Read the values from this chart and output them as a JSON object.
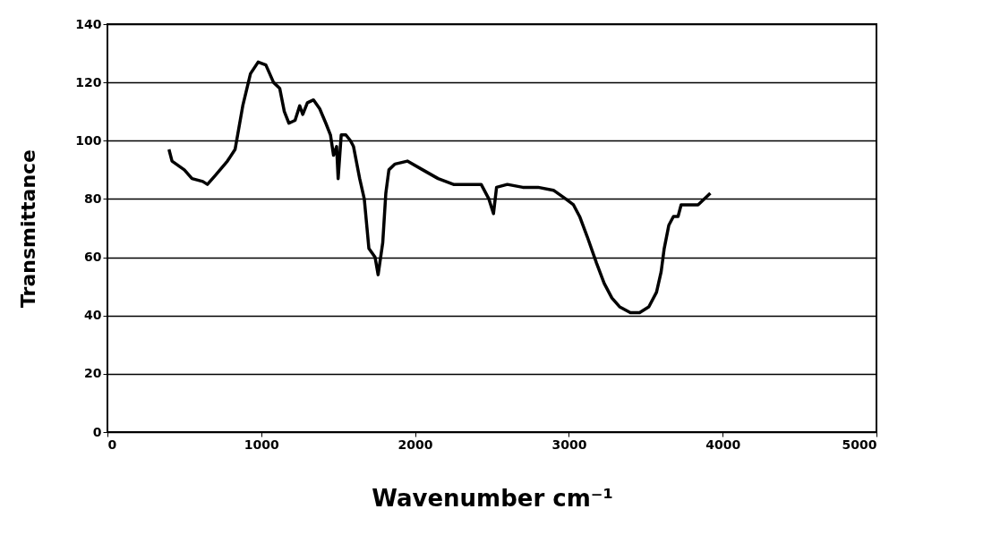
{
  "chart_data": {
    "type": "line",
    "xlabel": "Wavenumber cm⁻¹",
    "ylabel": "Transmittance",
    "x": [
      400,
      420,
      500,
      550,
      620,
      650,
      700,
      780,
      830,
      880,
      930,
      980,
      1030,
      1080,
      1120,
      1150,
      1180,
      1220,
      1250,
      1270,
      1300,
      1340,
      1380,
      1420,
      1450,
      1470,
      1490,
      1500,
      1520,
      1550,
      1580,
      1600,
      1640,
      1670,
      1700,
      1740,
      1760,
      1790,
      1810,
      1830,
      1870,
      1950,
      2050,
      2150,
      2250,
      2350,
      2430,
      2480,
      2510,
      2530,
      2600,
      2700,
      2800,
      2900,
      2980,
      3030,
      3070,
      3120,
      3180,
      3230,
      3280,
      3330,
      3400,
      3460,
      3520,
      3570,
      3600,
      3620,
      3650,
      3680,
      3710,
      3730,
      3790,
      3840,
      3880,
      3920
    ],
    "series": [
      {
        "color": "#000000",
        "values": [
          97,
          93,
          90,
          87,
          86,
          85,
          88,
          93,
          97,
          112,
          123,
          127,
          126,
          120,
          118,
          110,
          106,
          107,
          112,
          109,
          113,
          114,
          111,
          106,
          102,
          95,
          98,
          87,
          102,
          102,
          100,
          98,
          87,
          80,
          63,
          60,
          54,
          65,
          82,
          90,
          92,
          93,
          90,
          87,
          85,
          85,
          85,
          80,
          75,
          84,
          85,
          84,
          84,
          83,
          80,
          78,
          74,
          67,
          58,
          51,
          46,
          43,
          41,
          41,
          43,
          48,
          55,
          63,
          71,
          74,
          74,
          78,
          78,
          78,
          80,
          82
        ]
      }
    ],
    "xlim": [
      0,
      5000
    ],
    "xticks": [
      0,
      1000,
      2000,
      3000,
      4000,
      5000
    ],
    "ylim": [
      0,
      140
    ],
    "yticks": [
      0,
      20,
      40,
      60,
      80,
      100,
      120,
      140
    ],
    "grid": "y",
    "marker": "none",
    "line_style": "solid"
  }
}
